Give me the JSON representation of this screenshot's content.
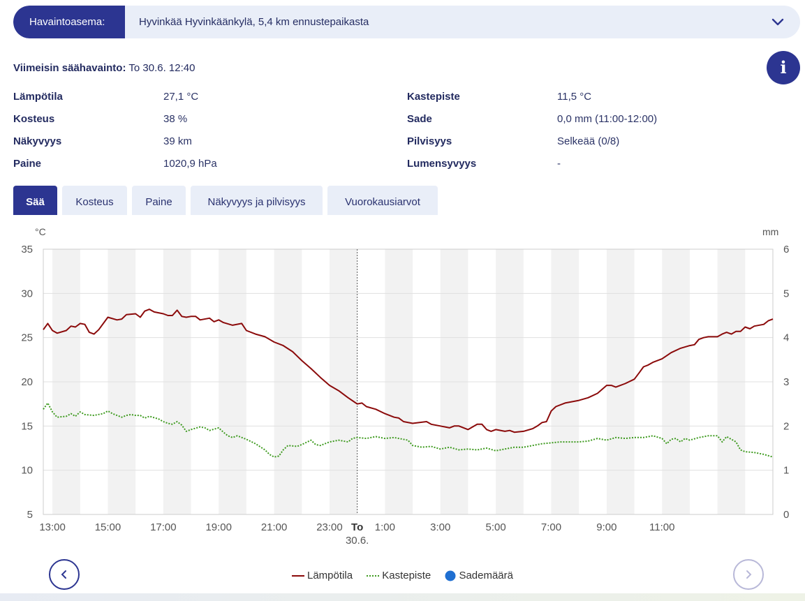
{
  "station": {
    "label": "Havaintoasema:",
    "value": "Hyvinkää Hyvinkäänkylä, 5,4 km ennustepaikasta",
    "dropdown_icon": "chevron-down-icon"
  },
  "latest": {
    "label": "Viimeisin säähavainto:",
    "time": "To 30.6. 12:40"
  },
  "info_button": {
    "icon": "info-icon",
    "glyph": "i"
  },
  "observations_left": [
    {
      "label": "Lämpötila",
      "value": "27,1 °C"
    },
    {
      "label": "Kosteus",
      "value": "38 %"
    },
    {
      "label": "Näkyvyys",
      "value": "39 km"
    },
    {
      "label": "Paine",
      "value": "1020,9 hPa"
    }
  ],
  "observations_right": [
    {
      "label": "Kastepiste",
      "value": "11,5 °C"
    },
    {
      "label": "Sade",
      "value": "0,0 mm (11:00-12:00)"
    },
    {
      "label": "Pilvisyys",
      "value": "Selkeää (0/8)"
    },
    {
      "label": "Lumensyvyys",
      "value": "-"
    }
  ],
  "tabs": [
    {
      "label": "Sää",
      "active": true
    },
    {
      "label": "Kosteus",
      "active": false
    },
    {
      "label": "Paine",
      "active": false
    },
    {
      "label": "Näkyvyys ja pilvisyys",
      "active": false
    },
    {
      "label": "Vuorokausiarvot",
      "active": false
    }
  ],
  "colors": {
    "accent": "#2c3591",
    "temperature": "#8b0a0a",
    "dewpoint": "#3d9a1e",
    "precipitation": "#1f6fd1"
  },
  "chart_data": {
    "type": "line",
    "y_left_unit": "°C",
    "y_right_unit": "mm",
    "y_left_range": [
      5,
      35
    ],
    "y_left_ticks": [
      "35",
      "30",
      "25",
      "20",
      "15",
      "10",
      "5"
    ],
    "y_right_range": [
      0,
      6
    ],
    "y_right_ticks": [
      "6",
      "5",
      "4",
      "3",
      "2",
      "1",
      "0"
    ],
    "x_range_hours": [
      12.67,
      36.67
    ],
    "x_tick_labels": [
      {
        "h": 13,
        "label": "13:00"
      },
      {
        "h": 15,
        "label": "15:00"
      },
      {
        "h": 17,
        "label": "17:00"
      },
      {
        "h": 19,
        "label": "19:00"
      },
      {
        "h": 21,
        "label": "21:00"
      },
      {
        "h": 23,
        "label": "23:00"
      },
      {
        "h": 24,
        "label": "To",
        "sublabel": "30.6.",
        "bold": true
      },
      {
        "h": 25,
        "label": "1:00"
      },
      {
        "h": 27,
        "label": "3:00"
      },
      {
        "h": 29,
        "label": "5:00"
      },
      {
        "h": 31,
        "label": "7:00"
      },
      {
        "h": 33,
        "label": "9:00"
      },
      {
        "h": 35,
        "label": "11:00"
      }
    ],
    "day_marker_hour": 24,
    "grid": true,
    "series": [
      {
        "name": "Lämpötila",
        "style": "solid",
        "points": [
          [
            12.67,
            25.9
          ],
          [
            12.83,
            26.6
          ],
          [
            13.0,
            25.8
          ],
          [
            13.17,
            25.5
          ],
          [
            13.5,
            25.8
          ],
          [
            13.67,
            26.3
          ],
          [
            13.83,
            26.2
          ],
          [
            14.0,
            26.6
          ],
          [
            14.17,
            26.5
          ],
          [
            14.33,
            25.6
          ],
          [
            14.5,
            25.4
          ],
          [
            14.67,
            25.9
          ],
          [
            15.0,
            27.3
          ],
          [
            15.33,
            27.0
          ],
          [
            15.5,
            27.1
          ],
          [
            15.67,
            27.6
          ],
          [
            16.0,
            27.7
          ],
          [
            16.17,
            27.3
          ],
          [
            16.33,
            28.0
          ],
          [
            16.5,
            28.2
          ],
          [
            16.67,
            27.9
          ],
          [
            17.0,
            27.7
          ],
          [
            17.17,
            27.5
          ],
          [
            17.33,
            27.5
          ],
          [
            17.5,
            28.1
          ],
          [
            17.67,
            27.4
          ],
          [
            17.83,
            27.3
          ],
          [
            18.0,
            27.4
          ],
          [
            18.17,
            27.4
          ],
          [
            18.33,
            27.0
          ],
          [
            18.67,
            27.2
          ],
          [
            18.83,
            26.8
          ],
          [
            19.0,
            27.0
          ],
          [
            19.17,
            26.7
          ],
          [
            19.5,
            26.4
          ],
          [
            19.83,
            26.6
          ],
          [
            20.0,
            25.8
          ],
          [
            20.33,
            25.4
          ],
          [
            20.67,
            25.1
          ],
          [
            21.0,
            24.5
          ],
          [
            21.33,
            24.1
          ],
          [
            21.67,
            23.4
          ],
          [
            22.0,
            22.4
          ],
          [
            22.33,
            21.5
          ],
          [
            22.67,
            20.5
          ],
          [
            23.0,
            19.6
          ],
          [
            23.33,
            19.0
          ],
          [
            23.67,
            18.2
          ],
          [
            24.0,
            17.5
          ],
          [
            24.17,
            17.6
          ],
          [
            24.33,
            17.2
          ],
          [
            24.67,
            16.9
          ],
          [
            25.0,
            16.4
          ],
          [
            25.33,
            16.0
          ],
          [
            25.5,
            15.9
          ],
          [
            25.67,
            15.5
          ],
          [
            26.0,
            15.3
          ],
          [
            26.5,
            15.5
          ],
          [
            26.67,
            15.2
          ],
          [
            27.0,
            15.0
          ],
          [
            27.33,
            14.8
          ],
          [
            27.5,
            15.0
          ],
          [
            27.67,
            15.0
          ],
          [
            28.0,
            14.6
          ],
          [
            28.33,
            15.2
          ],
          [
            28.5,
            15.2
          ],
          [
            28.67,
            14.6
          ],
          [
            28.83,
            14.4
          ],
          [
            29.0,
            14.6
          ],
          [
            29.33,
            14.4
          ],
          [
            29.5,
            14.5
          ],
          [
            29.67,
            14.3
          ],
          [
            30.0,
            14.4
          ],
          [
            30.33,
            14.7
          ],
          [
            30.5,
            15.0
          ],
          [
            30.67,
            15.4
          ],
          [
            30.83,
            15.5
          ],
          [
            31.0,
            16.7
          ],
          [
            31.17,
            17.2
          ],
          [
            31.5,
            17.6
          ],
          [
            32.0,
            17.9
          ],
          [
            32.33,
            18.2
          ],
          [
            32.67,
            18.7
          ],
          [
            33.0,
            19.6
          ],
          [
            33.17,
            19.6
          ],
          [
            33.33,
            19.4
          ],
          [
            33.67,
            19.8
          ],
          [
            34.0,
            20.3
          ],
          [
            34.17,
            21.0
          ],
          [
            34.33,
            21.7
          ],
          [
            34.5,
            21.9
          ],
          [
            34.67,
            22.2
          ],
          [
            35.0,
            22.6
          ],
          [
            35.33,
            23.3
          ],
          [
            35.67,
            23.8
          ],
          [
            36.0,
            24.1
          ],
          [
            36.17,
            24.2
          ],
          [
            36.33,
            24.8
          ],
          [
            36.5,
            25.0
          ],
          [
            36.67,
            25.1
          ],
          [
            37.0,
            25.1
          ],
          [
            37.17,
            25.4
          ],
          [
            37.33,
            25.6
          ],
          [
            37.5,
            25.4
          ],
          [
            37.67,
            25.7
          ],
          [
            37.83,
            25.7
          ],
          [
            38.0,
            26.2
          ],
          [
            38.17,
            26.0
          ],
          [
            38.33,
            26.3
          ],
          [
            38.67,
            26.5
          ],
          [
            38.83,
            26.9
          ],
          [
            39.0,
            27.1
          ]
        ]
      },
      {
        "name": "Kastepiste",
        "style": "dotted",
        "points": [
          [
            12.67,
            16.9
          ],
          [
            12.83,
            17.6
          ],
          [
            13.0,
            16.6
          ],
          [
            13.17,
            16.0
          ],
          [
            13.5,
            16.1
          ],
          [
            13.67,
            16.4
          ],
          [
            13.83,
            16.1
          ],
          [
            14.0,
            16.6
          ],
          [
            14.17,
            16.3
          ],
          [
            14.5,
            16.2
          ],
          [
            14.83,
            16.4
          ],
          [
            15.0,
            16.7
          ],
          [
            15.17,
            16.4
          ],
          [
            15.5,
            16.0
          ],
          [
            15.67,
            16.2
          ],
          [
            15.83,
            16.3
          ],
          [
            16.0,
            16.2
          ],
          [
            16.17,
            16.2
          ],
          [
            16.33,
            15.9
          ],
          [
            16.5,
            16.1
          ],
          [
            16.83,
            15.8
          ],
          [
            17.0,
            15.5
          ],
          [
            17.17,
            15.3
          ],
          [
            17.33,
            15.2
          ],
          [
            17.5,
            15.5
          ],
          [
            17.67,
            15.1
          ],
          [
            17.83,
            14.4
          ],
          [
            18.0,
            14.6
          ],
          [
            18.33,
            14.9
          ],
          [
            18.5,
            14.8
          ],
          [
            18.67,
            14.5
          ],
          [
            19.0,
            14.8
          ],
          [
            19.17,
            14.3
          ],
          [
            19.33,
            13.9
          ],
          [
            19.5,
            13.7
          ],
          [
            19.67,
            13.9
          ],
          [
            20.0,
            13.5
          ],
          [
            20.33,
            13.0
          ],
          [
            20.67,
            12.3
          ],
          [
            20.83,
            11.8
          ],
          [
            21.0,
            11.5
          ],
          [
            21.17,
            11.6
          ],
          [
            21.33,
            12.3
          ],
          [
            21.5,
            12.8
          ],
          [
            21.83,
            12.7
          ],
          [
            22.0,
            12.9
          ],
          [
            22.33,
            13.4
          ],
          [
            22.5,
            12.9
          ],
          [
            22.67,
            12.8
          ],
          [
            23.0,
            13.2
          ],
          [
            23.33,
            13.4
          ],
          [
            23.67,
            13.2
          ],
          [
            23.83,
            13.6
          ],
          [
            24.0,
            13.7
          ],
          [
            24.33,
            13.6
          ],
          [
            24.67,
            13.8
          ],
          [
            25.0,
            13.6
          ],
          [
            25.33,
            13.7
          ],
          [
            25.5,
            13.6
          ],
          [
            25.83,
            13.4
          ],
          [
            26.0,
            12.8
          ],
          [
            26.33,
            12.6
          ],
          [
            26.67,
            12.7
          ],
          [
            27.0,
            12.4
          ],
          [
            27.33,
            12.6
          ],
          [
            27.67,
            12.3
          ],
          [
            28.0,
            12.4
          ],
          [
            28.33,
            12.3
          ],
          [
            28.67,
            12.5
          ],
          [
            29.0,
            12.2
          ],
          [
            29.33,
            12.4
          ],
          [
            29.67,
            12.6
          ],
          [
            30.0,
            12.6
          ],
          [
            30.33,
            12.8
          ],
          [
            30.67,
            13.0
          ],
          [
            31.0,
            13.1
          ],
          [
            31.33,
            13.2
          ],
          [
            31.67,
            13.2
          ],
          [
            32.0,
            13.2
          ],
          [
            32.33,
            13.3
          ],
          [
            32.67,
            13.6
          ],
          [
            33.0,
            13.4
          ],
          [
            33.33,
            13.7
          ],
          [
            33.67,
            13.6
          ],
          [
            34.0,
            13.7
          ],
          [
            34.33,
            13.7
          ],
          [
            34.67,
            13.9
          ],
          [
            35.0,
            13.6
          ],
          [
            35.17,
            13.0
          ],
          [
            35.33,
            13.5
          ],
          [
            35.5,
            13.6
          ],
          [
            35.67,
            13.2
          ],
          [
            35.83,
            13.6
          ],
          [
            36.0,
            13.4
          ],
          [
            36.33,
            13.7
          ],
          [
            36.67,
            13.9
          ],
          [
            37.0,
            13.9
          ],
          [
            37.17,
            13.2
          ],
          [
            37.33,
            13.8
          ],
          [
            37.67,
            13.2
          ],
          [
            37.83,
            12.3
          ],
          [
            38.0,
            12.1
          ],
          [
            38.33,
            12.0
          ],
          [
            38.67,
            11.8
          ],
          [
            39.0,
            11.5
          ]
        ]
      },
      {
        "name": "Sademäärä",
        "style": "marker",
        "points": []
      }
    ]
  },
  "nav": {
    "prev_icon": "chevron-left-icon",
    "next_icon": "chevron-right-icon"
  }
}
